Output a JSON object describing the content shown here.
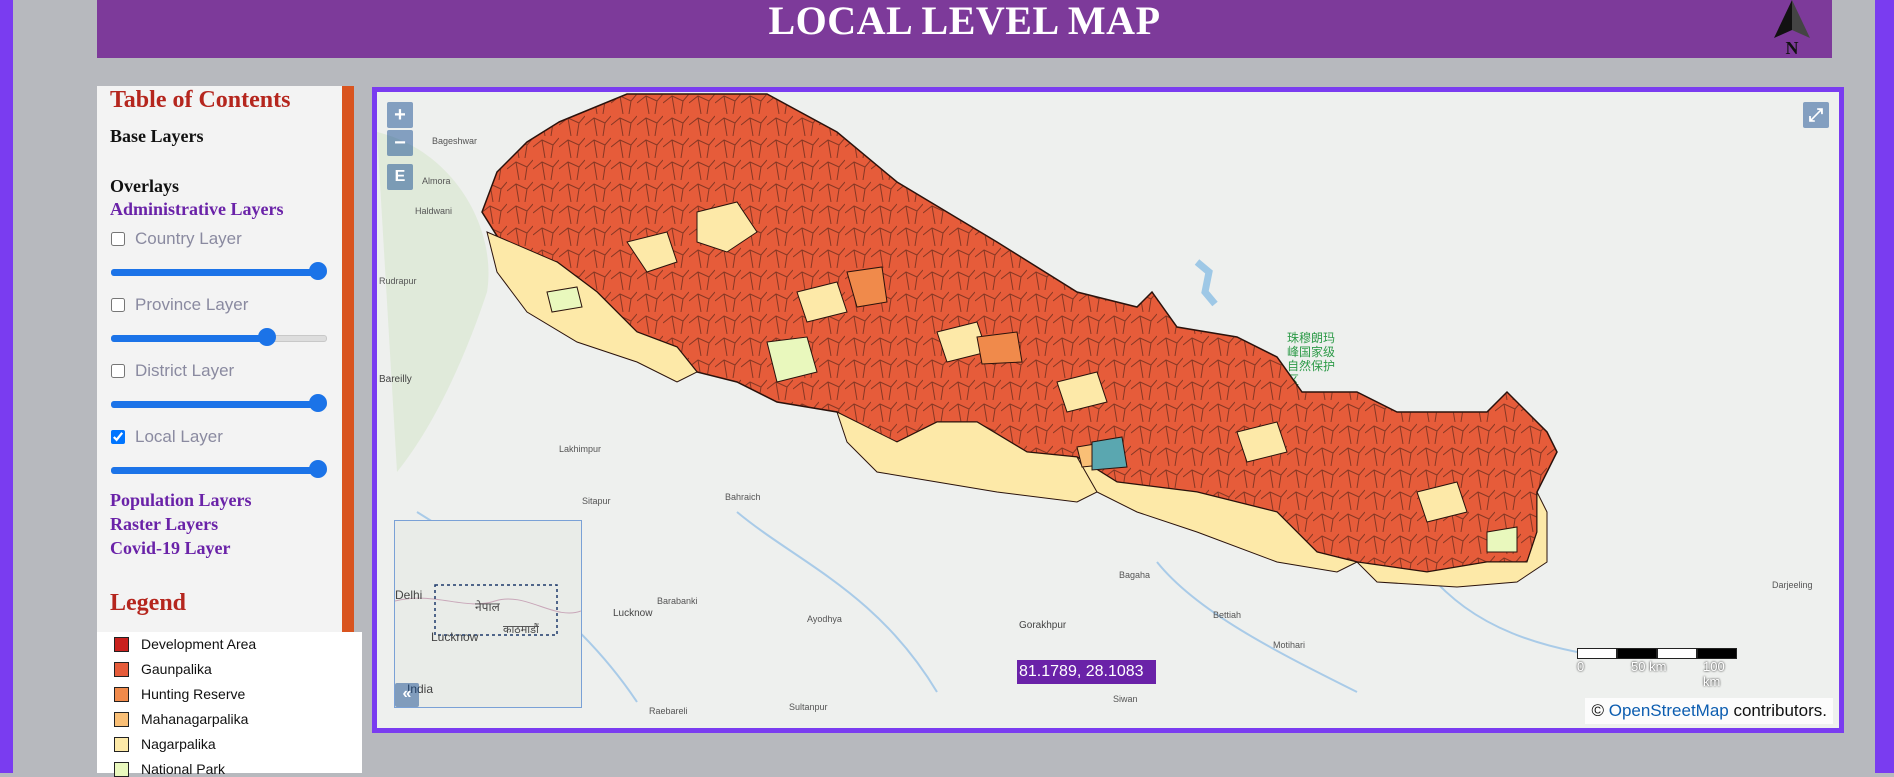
{
  "header": {
    "title": "LOCAL LEVEL MAP",
    "north_label": "N"
  },
  "toc": {
    "title": "Table of Contents",
    "base_layers": "Base Layers",
    "overlays": "Overlays",
    "admin_group": "Administrative Layers",
    "layers": [
      {
        "label": "Country Layer",
        "checked": false,
        "opacity": 1.0
      },
      {
        "label": "Province Layer",
        "checked": false,
        "opacity": 0.74
      },
      {
        "label": "District Layer",
        "checked": false,
        "opacity": 1.0
      },
      {
        "label": "Local Layer",
        "checked": true,
        "opacity": 1.0
      }
    ],
    "population_group": "Population Layers",
    "raster_group": "Raster Layers",
    "covid_group": "Covid-19 Layer",
    "legend_title": "Legend"
  },
  "legend": {
    "items": [
      {
        "label": "Development Area",
        "color": "#c9211e"
      },
      {
        "label": "Gaunpalika",
        "color": "#e65c3a"
      },
      {
        "label": "Hunting Reserve",
        "color": "#f08a4b"
      },
      {
        "label": "Mahanagarpalika",
        "color": "#f9bf76"
      },
      {
        "label": "Nagarpalika",
        "color": "#fde9a8"
      },
      {
        "label": "National Park",
        "color": "#e9f8bd"
      }
    ]
  },
  "map": {
    "zoom_in": "+",
    "zoom_out": "−",
    "extent_label": "E",
    "fullscreen_icon": "⤢",
    "overview_toggle": "«",
    "coordinates": "81.1789, 28.1083",
    "scale_labels": [
      "0",
      "50 km",
      "100 km"
    ],
    "attribution_prefix": "© ",
    "attribution_link": "OpenStreetMap",
    "attribution_suffix": " contributors.",
    "places": {
      "bageshwar": "Bageshwar",
      "almora": "Almora",
      "haldwani": "Haldwani",
      "rudrapur": "Rudrapur",
      "bareilly": "Bareilly",
      "lakhimpur": "Lakhimpur",
      "bahraich": "Bahraich",
      "sitapur": "Sitapur",
      "lucknow": "Lucknow",
      "barabanki": "Barabanki",
      "ayodhya": "Ayodhya",
      "gorakhpur": "Gorakhpur",
      "siwan": "Siwan",
      "bagaha": "Bagaha",
      "bettiah": "Bettiah",
      "motihari": "Motihari",
      "darjeeling": "Darjeeling",
      "sultanpur": "Sultanpur",
      "raebareli": "Raebareli",
      "reserve": "珠穆朗玛\n峰国家级\n自然保护\n区"
    },
    "overview_labels": {
      "delhi": "Delhi",
      "lucknow": "Lucknow",
      "india": "India",
      "nepal": "नेपाल",
      "kathmandu": "काठमाडौं"
    }
  }
}
